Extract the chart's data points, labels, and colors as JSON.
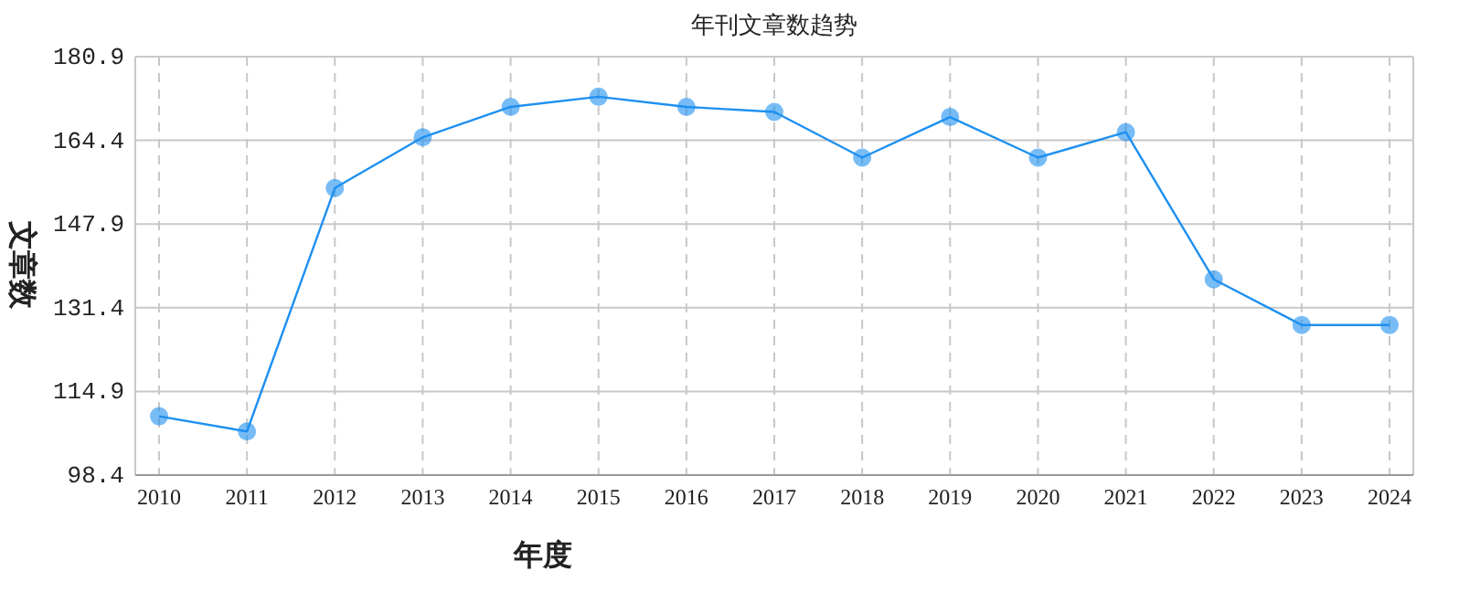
{
  "chart_data": {
    "type": "line",
    "title": "年刊文章数趋势",
    "xlabel": "年度",
    "ylabel": "文章数",
    "categories": [
      "2010",
      "2011",
      "2012",
      "2013",
      "2014",
      "2015",
      "2016",
      "2017",
      "2018",
      "2019",
      "2020",
      "2021",
      "2022",
      "2023",
      "2024"
    ],
    "series": [
      {
        "color": "#1e90f0",
        "values": [
          110,
          107,
          155,
          165,
          171,
          173,
          171,
          170,
          161,
          169,
          161,
          166,
          137,
          128,
          128
        ]
      }
    ],
    "ylim": [
      98.4,
      180.9
    ],
    "yticks": [
      98.4,
      114.9,
      131.4,
      147.9,
      164.4,
      180.9
    ],
    "grid": true,
    "marker": "circle",
    "line_style": "solid"
  }
}
